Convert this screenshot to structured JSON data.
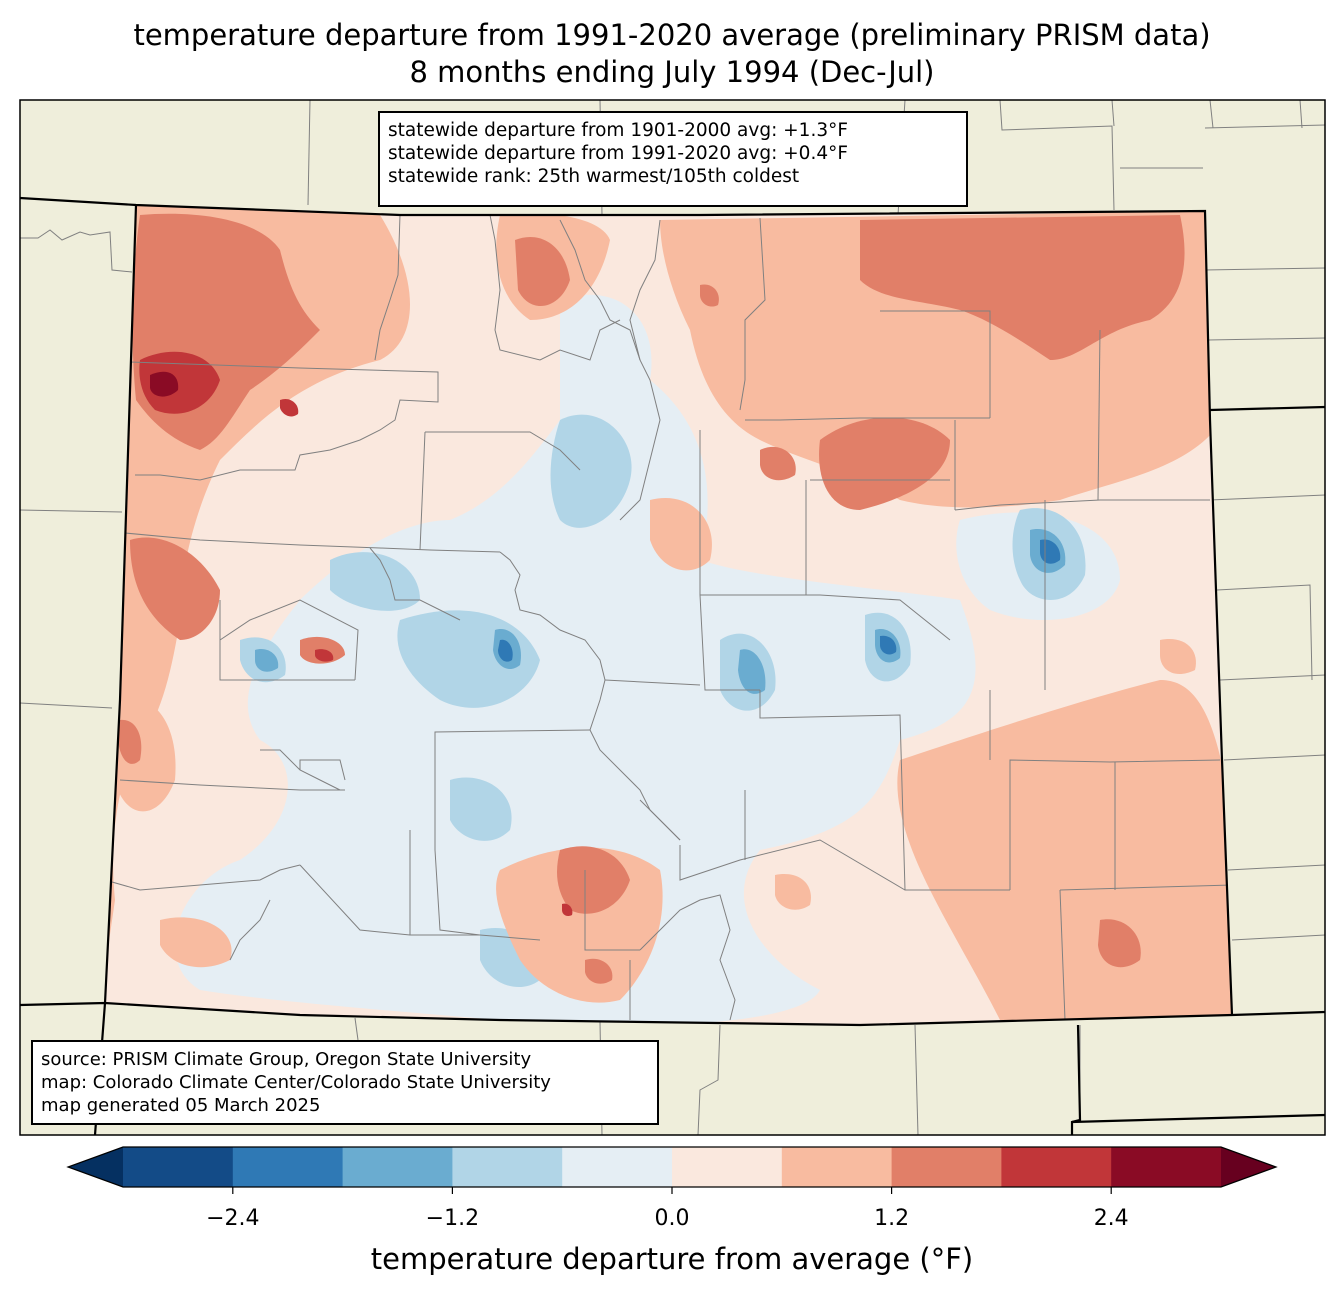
{
  "title": {
    "line1": "temperature departure from 1991-2020 average (preliminary PRISM data)",
    "line2": "8 months ending July 1994 (Dec-Jul)"
  },
  "stats_box": {
    "line1": "statewide departure from 1901-2000 avg: +1.3°F",
    "line2": "statewide departure from 1991-2020 avg: +0.4°F",
    "line3": "statewide rank: 25th warmest/105th coldest"
  },
  "source_box": {
    "line1": "source: PRISM Climate Group, Oregon State University",
    "line2": "map: Colorado Climate Center/Colorado State University",
    "line3": "map generated 05 March 2025"
  },
  "colorbar": {
    "title": "temperature departure from average (°F)",
    "tick_labels": [
      "−2.4",
      "−1.2",
      "0.0",
      "1.2",
      "2.4"
    ],
    "tick_values": [
      -2.4,
      -1.2,
      0.0,
      1.2,
      2.4
    ],
    "bin_edges": [
      -3.0,
      -2.4,
      -1.8,
      -1.2,
      -0.6,
      0.0,
      0.6,
      1.2,
      1.8,
      2.4,
      3.0
    ],
    "under_color": "#053061",
    "over_color": "#67001f",
    "bin_colors": [
      "#134b87",
      "#2f79b5",
      "#6aacd0",
      "#b1d5e7",
      "#e5eef4",
      "#fae8de",
      "#f8bba0",
      "#e17f68",
      "#c13639",
      "#8a0b25"
    ]
  },
  "colors": {
    "land_background": "#efeedb",
    "state_border": "#000000",
    "county_border": "#808080"
  }
}
